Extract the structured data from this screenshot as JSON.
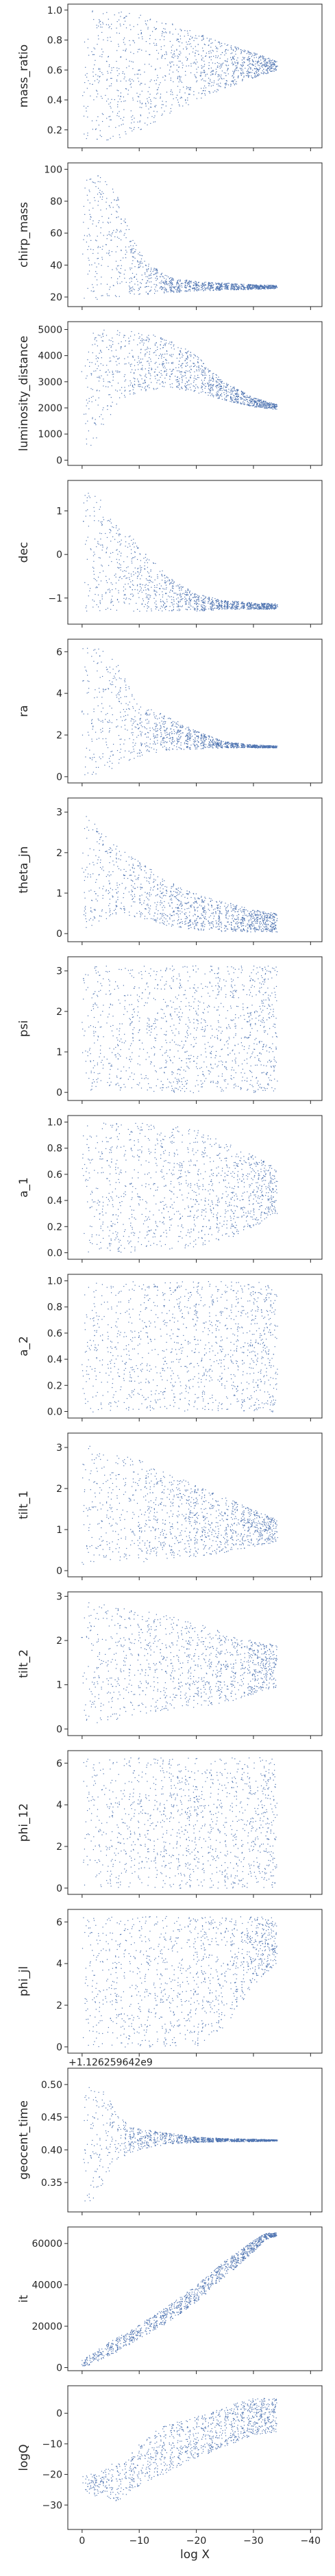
{
  "chart_data": {
    "type": "scatter",
    "xlabel": "log X",
    "xlim": [
      2.5,
      -42
    ],
    "xticks": [
      0,
      -10,
      -20,
      -30,
      -40
    ],
    "xtick_labels": [
      "0",
      "−10",
      "−20",
      "−30",
      "−40"
    ],
    "marker_color": "#4c72b0",
    "grid": false,
    "panels": [
      {
        "ylabel": "mass_ratio",
        "ylim": [
          0.08,
          1.04
        ],
        "yticks": [
          0.2,
          0.4,
          0.6,
          0.8,
          1.0
        ],
        "ytick_labels": [
          "0.2",
          "0.4",
          "0.6",
          "0.8",
          "1.0"
        ],
        "trend": {
          "x": [
            0,
            -5,
            -10,
            -15,
            -20,
            -25,
            -30,
            -34
          ],
          "lo": [
            0.12,
            0.13,
            0.2,
            0.3,
            0.4,
            0.48,
            0.55,
            0.6
          ],
          "hi": [
            1.0,
            1.0,
            0.98,
            0.92,
            0.85,
            0.78,
            0.72,
            0.66
          ]
        }
      },
      {
        "ylabel": "chirp_mass",
        "ylim": [
          14,
          104
        ],
        "yticks": [
          20,
          40,
          60,
          80,
          100
        ],
        "ytick_labels": [
          "20",
          "40",
          "60",
          "80",
          "100"
        ],
        "trend": {
          "x": [
            0,
            -3,
            -6,
            -9,
            -12,
            -16,
            -20,
            -25,
            -30,
            -34
          ],
          "lo": [
            18,
            19,
            20,
            21,
            22,
            23,
            24,
            24.5,
            25,
            25.5
          ],
          "hi": [
            100,
            98,
            85,
            55,
            40,
            32,
            30,
            29,
            28,
            27.5
          ]
        }
      },
      {
        "ylabel": "luminosity_distance",
        "ylim": [
          -200,
          5300
        ],
        "yticks": [
          0,
          1000,
          2000,
          3000,
          4000,
          5000
        ],
        "ytick_labels": [
          "0",
          "1000",
          "2000",
          "3000",
          "4000",
          "5000"
        ],
        "trend": {
          "x": [
            0,
            -3,
            -6,
            -10,
            -15,
            -20,
            -25,
            -30,
            -34
          ],
          "lo": [
            100,
            1000,
            2000,
            2600,
            2800,
            2600,
            2300,
            2050,
            1950
          ],
          "hi": [
            4800,
            5000,
            5000,
            4900,
            4700,
            4000,
            3000,
            2400,
            2150
          ]
        }
      },
      {
        "ylabel": "dec",
        "ylim": [
          -1.6,
          1.7
        ],
        "yticks": [
          -1,
          0,
          1
        ],
        "ytick_labels": [
          "−1",
          "0",
          "1"
        ],
        "trend": {
          "x": [
            0,
            -3,
            -6,
            -10,
            -15,
            -20,
            -25,
            -30,
            -34
          ],
          "lo": [
            -1.3,
            -1.3,
            -1.3,
            -1.3,
            -1.3,
            -1.3,
            -1.25,
            -1.25,
            -1.25
          ],
          "hi": [
            1.5,
            1.3,
            0.8,
            0.2,
            -0.5,
            -0.9,
            -1.05,
            -1.1,
            -1.12
          ]
        }
      },
      {
        "ylabel": "ra",
        "ylim": [
          -0.3,
          6.6
        ],
        "yticks": [
          0,
          2,
          4,
          6
        ],
        "ytick_labels": [
          "0",
          "2",
          "4",
          "6"
        ],
        "trend": {
          "x": [
            0,
            -3,
            -6,
            -10,
            -15,
            -20,
            -25,
            -30,
            -34
          ],
          "lo": [
            0.1,
            0.1,
            0.3,
            1.0,
            1.3,
            1.35,
            1.4,
            1.4,
            1.4
          ],
          "hi": [
            6.2,
            6.2,
            5.5,
            3.5,
            2.9,
            2.2,
            1.7,
            1.55,
            1.5
          ]
        }
      },
      {
        "ylabel": "theta_jn",
        "ylim": [
          -0.2,
          3.35
        ],
        "yticks": [
          0,
          1,
          2,
          3
        ],
        "ytick_labels": [
          "0",
          "1",
          "2",
          "3"
        ],
        "trend": {
          "x": [
            0,
            -3,
            -6,
            -10,
            -15,
            -20,
            -25,
            -30,
            -34
          ],
          "lo": [
            0.1,
            0.3,
            0.5,
            0.4,
            0.2,
            0.1,
            0.05,
            0.05,
            0.05
          ],
          "hi": [
            3.0,
            2.6,
            2.2,
            1.8,
            1.3,
            1.0,
            0.8,
            0.6,
            0.5
          ]
        }
      },
      {
        "ylabel": "psi",
        "ylim": [
          -0.2,
          3.35
        ],
        "yticks": [
          0,
          1,
          2,
          3
        ],
        "ytick_labels": [
          "0",
          "1",
          "2",
          "3"
        ],
        "trend": {
          "x": [
            0,
            -10,
            -20,
            -30,
            -34
          ],
          "lo": [
            0.0,
            0.0,
            0.0,
            0.0,
            0.0
          ],
          "hi": [
            3.14,
            3.14,
            3.14,
            3.14,
            3.14
          ]
        }
      },
      {
        "ylabel": "a_1",
        "ylim": [
          -0.05,
          1.05
        ],
        "yticks": [
          0.0,
          0.2,
          0.4,
          0.6,
          0.8,
          1.0
        ],
        "ytick_labels": [
          "0.0",
          "0.2",
          "0.4",
          "0.6",
          "0.8",
          "1.0"
        ],
        "trend": {
          "x": [
            0,
            -10,
            -20,
            -25,
            -30,
            -34
          ],
          "lo": [
            0.0,
            0.0,
            0.05,
            0.1,
            0.2,
            0.3
          ],
          "hi": [
            1.0,
            1.0,
            0.95,
            0.85,
            0.75,
            0.65
          ]
        }
      },
      {
        "ylabel": "a_2",
        "ylim": [
          -0.05,
          1.05
        ],
        "yticks": [
          0.0,
          0.2,
          0.4,
          0.6,
          0.8,
          1.0
        ],
        "ytick_labels": [
          "0.0",
          "0.2",
          "0.4",
          "0.6",
          "0.8",
          "1.0"
        ],
        "trend": {
          "x": [
            0,
            -10,
            -20,
            -30,
            -34
          ],
          "lo": [
            0.0,
            0.0,
            0.0,
            0.0,
            0.0
          ],
          "hi": [
            1.0,
            1.0,
            1.0,
            1.0,
            1.0
          ]
        }
      },
      {
        "ylabel": "tilt_1",
        "ylim": [
          -0.15,
          3.35
        ],
        "yticks": [
          0,
          1,
          2,
          3
        ],
        "ytick_labels": [
          "0",
          "1",
          "2",
          "3"
        ],
        "trend": {
          "x": [
            0,
            -5,
            -10,
            -15,
            -20,
            -25,
            -30,
            -34
          ],
          "lo": [
            0.1,
            0.2,
            0.2,
            0.3,
            0.35,
            0.45,
            0.6,
            0.7
          ],
          "hi": [
            3.1,
            2.9,
            2.7,
            2.4,
            2.1,
            1.8,
            1.5,
            1.25
          ]
        }
      },
      {
        "ylabel": "tilt_2",
        "ylim": [
          -0.15,
          3.1
        ],
        "yticks": [
          0,
          1,
          2,
          3
        ],
        "ytick_labels": [
          "0",
          "1",
          "2",
          "3"
        ],
        "trend": {
          "x": [
            0,
            -5,
            -10,
            -15,
            -20,
            -25,
            -30,
            -34
          ],
          "lo": [
            0.1,
            0.2,
            0.3,
            0.4,
            0.5,
            0.6,
            0.8,
            0.95
          ],
          "hi": [
            2.9,
            2.8,
            2.7,
            2.6,
            2.4,
            2.2,
            2.0,
            1.9
          ]
        }
      },
      {
        "ylabel": "phi_12",
        "ylim": [
          -0.3,
          6.6
        ],
        "yticks": [
          0,
          2,
          4,
          6
        ],
        "ytick_labels": [
          "0",
          "2",
          "4",
          "6"
        ],
        "trend": {
          "x": [
            0,
            -10,
            -20,
            -30,
            -34
          ],
          "lo": [
            0.0,
            0.0,
            0.0,
            0.0,
            0.0
          ],
          "hi": [
            6.28,
            6.28,
            6.28,
            6.28,
            6.28
          ]
        }
      },
      {
        "ylabel": "phi_jl",
        "ylim": [
          -0.3,
          6.6
        ],
        "yticks": [
          0,
          2,
          4,
          6
        ],
        "ytick_labels": [
          "0",
          "2",
          "4",
          "6"
        ],
        "trend": {
          "x": [
            0,
            -10,
            -20,
            -25,
            -30,
            -34
          ],
          "lo": [
            0.0,
            0.0,
            0.0,
            1.0,
            3.0,
            4.0
          ],
          "hi": [
            6.28,
            6.28,
            6.28,
            6.28,
            6.28,
            6.2
          ]
        }
      },
      {
        "ylabel": "geocent_time",
        "offset_text": "+1.126259642e9",
        "ylim": [
          0.305,
          0.525
        ],
        "yticks": [
          0.35,
          0.4,
          0.45,
          0.5
        ],
        "ytick_labels": [
          "0.35",
          "0.40",
          "0.45",
          "0.50"
        ],
        "trend": {
          "x": [
            0,
            -2,
            -4,
            -6,
            -8,
            -12,
            -16,
            -20,
            -25,
            -30,
            -34
          ],
          "lo": [
            0.32,
            0.32,
            0.35,
            0.38,
            0.395,
            0.405,
            0.41,
            0.412,
            0.413,
            0.413,
            0.414
          ],
          "hi": [
            0.5,
            0.5,
            0.49,
            0.46,
            0.44,
            0.43,
            0.425,
            0.42,
            0.418,
            0.417,
            0.416
          ]
        }
      },
      {
        "ylabel": "it",
        "ylim": [
          -1500,
          68000
        ],
        "yticks": [
          0,
          20000,
          40000,
          60000
        ],
        "ytick_labels": [
          "0",
          "20000",
          "40000",
          "60000"
        ],
        "trend": {
          "x": [
            0,
            -5,
            -10,
            -15,
            -20,
            -25,
            -30,
            -32,
            -34
          ],
          "lo": [
            0,
            6000,
            14000,
            22000,
            32000,
            44000,
            56000,
            62000,
            63500
          ],
          "hi": [
            4000,
            13000,
            21000,
            30000,
            40000,
            52000,
            62000,
            65000,
            65500
          ]
        }
      },
      {
        "ylabel": "logQ",
        "ylim": [
          -38,
          9
        ],
        "yticks": [
          -30,
          -20,
          -10,
          0
        ],
        "ytick_labels": [
          "−30",
          "−20",
          "−10",
          "0"
        ],
        "trend": {
          "x": [
            0,
            -2,
            -4,
            -6,
            -8,
            -10,
            -14,
            -18,
            -22,
            -26,
            -30,
            -34
          ],
          "lo": [
            -26,
            -27,
            -27,
            -29,
            -26,
            -24,
            -20,
            -16,
            -13,
            -10,
            -7,
            -6
          ],
          "hi": [
            -19,
            -20,
            -18,
            -15,
            -14,
            -10,
            -4,
            -2,
            0,
            3,
            5,
            5
          ]
        }
      }
    ]
  }
}
